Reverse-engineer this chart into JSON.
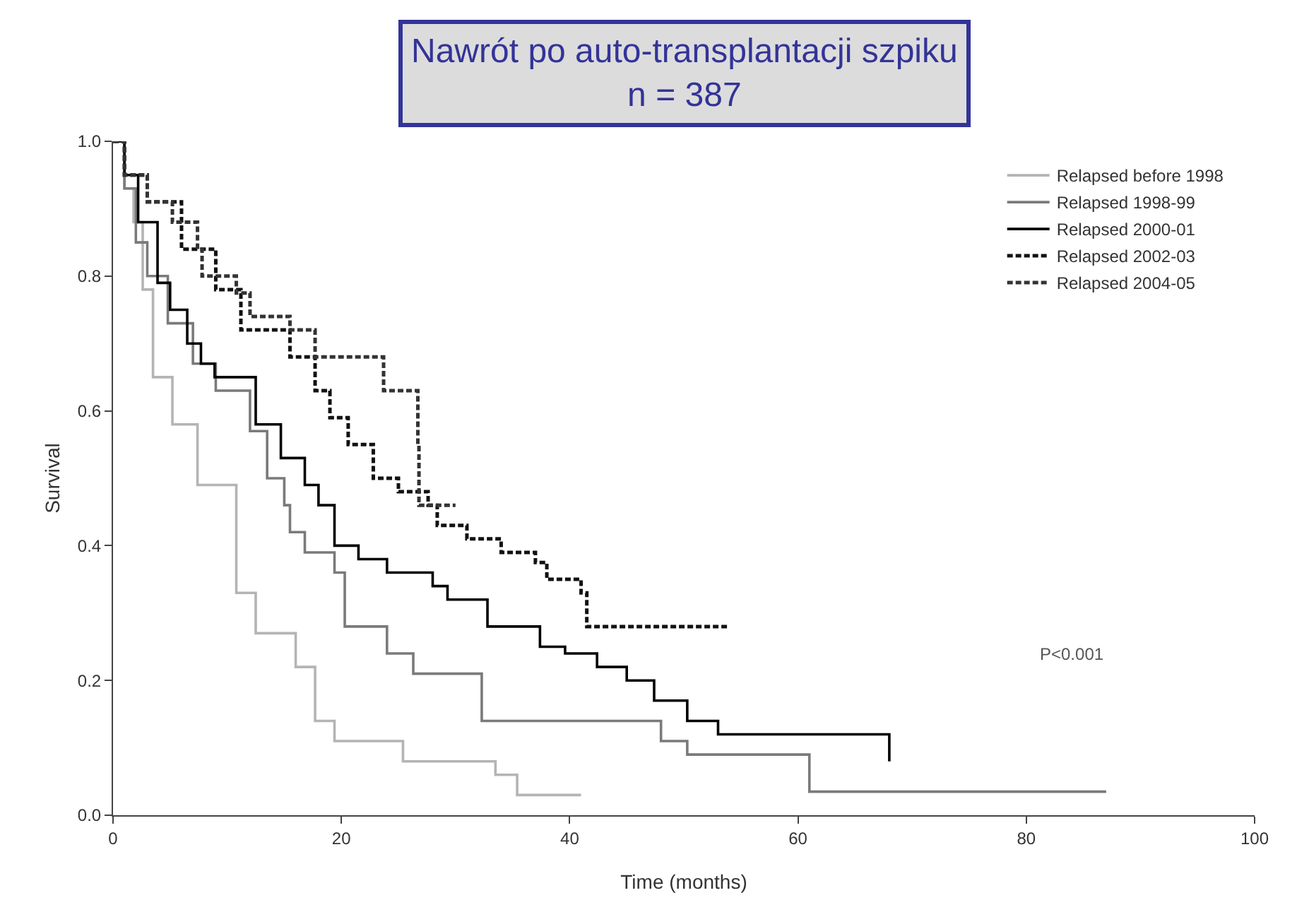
{
  "chart_data": {
    "type": "step",
    "title": "Nawrót po auto-transplantacji szpiku",
    "subtitle": "n = 387",
    "xlabel": "Time (months)",
    "ylabel": "Survival",
    "annotations": [
      "P<0.001"
    ],
    "legend": "top right",
    "xlim": [
      0,
      100
    ],
    "xticks": [
      0,
      20,
      40,
      60,
      80,
      100
    ],
    "ylim": [
      0,
      1
    ],
    "yticks": [
      {
        "value": 0,
        "label": "0.0"
      },
      {
        "value": 0.2,
        "label": "0.2"
      },
      {
        "value": 0.4,
        "label": "0.4"
      },
      {
        "value": 0.6,
        "label": "0.6"
      },
      {
        "value": 0.8,
        "label": "0.8"
      },
      {
        "value": 1,
        "label": "1.0"
      }
    ],
    "series": [
      {
        "name": "Relapsed before 1998",
        "color": "#b4b4b4",
        "line_style": "solid",
        "x": [
          0,
          1,
          1.8,
          2.6,
          3.5,
          5.2,
          7.4,
          10.8,
          12.5,
          16,
          17.7,
          19.4,
          25.4,
          33.5,
          35.4,
          41
        ],
        "values": [
          1,
          0.93,
          0.88,
          0.78,
          0.65,
          0.58,
          0.49,
          0.33,
          0.27,
          0.22,
          0.14,
          0.11,
          0.08,
          0.06,
          0.03,
          0.03
        ]
      },
      {
        "name": "Relapsed 1998-99",
        "color": "#7a7a7a",
        "line_style": "solid",
        "x": [
          0,
          1,
          2,
          3,
          4.8,
          7,
          9,
          12,
          13.5,
          15,
          15.5,
          16.8,
          19.4,
          20.3,
          24,
          26.3,
          32.3,
          48,
          50.3,
          61,
          87
        ],
        "values": [
          1,
          0.93,
          0.85,
          0.8,
          0.73,
          0.67,
          0.63,
          0.57,
          0.5,
          0.46,
          0.42,
          0.39,
          0.36,
          0.28,
          0.24,
          0.21,
          0.14,
          0.11,
          0.09,
          0.035,
          0.035
        ]
      },
      {
        "name": "Relapsed 2000-01",
        "color": "#000000",
        "line_style": "solid",
        "x": [
          0,
          1,
          2.2,
          3.9,
          5,
          6.5,
          7.7,
          8.9,
          12.5,
          14.7,
          16.8,
          18,
          19.4,
          21.5,
          24,
          28,
          29.3,
          32.8,
          37.4,
          39.6,
          42.4,
          45,
          47.4,
          50.3,
          53,
          67.6,
          68
        ],
        "values": [
          1,
          0.95,
          0.88,
          0.79,
          0.75,
          0.7,
          0.67,
          0.65,
          0.58,
          0.53,
          0.49,
          0.46,
          0.4,
          0.38,
          0.36,
          0.34,
          0.32,
          0.28,
          0.25,
          0.24,
          0.22,
          0.2,
          0.17,
          0.14,
          0.12,
          0.12,
          0.08
        ]
      },
      {
        "name": "Relapsed 2002-03",
        "color": "#111111",
        "line_style": "dashed",
        "x": [
          0,
          1,
          3,
          6,
          9,
          11.2,
          15.5,
          17.7,
          19,
          20.6,
          22.8,
          25,
          27.6,
          28.4,
          31,
          34,
          37,
          38,
          41,
          41.5,
          54
        ],
        "values": [
          1,
          0.95,
          0.91,
          0.84,
          0.78,
          0.72,
          0.68,
          0.63,
          0.59,
          0.55,
          0.5,
          0.48,
          0.46,
          0.43,
          0.41,
          0.39,
          0.375,
          0.35,
          0.33,
          0.28,
          0.28
        ]
      },
      {
        "name": "Relapsed 2004-05",
        "color": "#333333",
        "line_style": "dashed",
        "x": [
          0,
          1,
          3,
          5.2,
          7.4,
          7.8,
          10.8,
          12,
          15.5,
          17.7,
          23.7,
          26.7,
          26.8,
          30
        ],
        "values": [
          1,
          0.95,
          0.91,
          0.88,
          0.84,
          0.8,
          0.775,
          0.74,
          0.72,
          0.68,
          0.63,
          0.55,
          0.46,
          0.46
        ]
      }
    ]
  }
}
